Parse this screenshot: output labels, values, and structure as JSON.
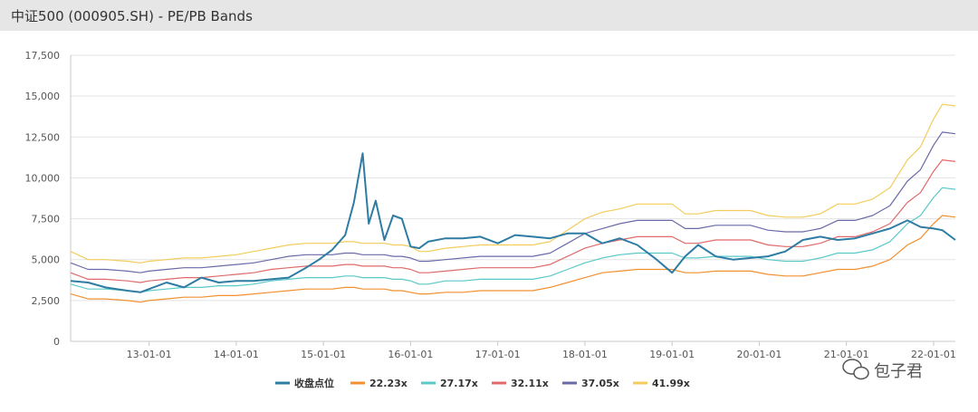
{
  "window": {
    "title": "中证500 (000905.SH) - PE/PB Bands"
  },
  "watermark": {
    "text": "包子君"
  },
  "chart_data": {
    "type": "line",
    "title": "中证500 (000905.SH) - PE/PB Bands",
    "xlabel": "",
    "ylabel": "",
    "ylim": [
      0,
      17500
    ],
    "grid": "horizontal",
    "legend_position": "bottom",
    "x_tick_labels": [
      "13-01-01",
      "14-01-01",
      "15-01-01",
      "16-01-01",
      "17-01-01",
      "18-01-01",
      "19-01-01",
      "20-01-01",
      "21-01-01",
      "22-01-01"
    ],
    "x_tick_positions": [
      2013.0,
      2014.0,
      2015.0,
      2016.0,
      2017.0,
      2018.0,
      2019.0,
      2020.0,
      2021.0,
      2022.0
    ],
    "y_ticks": [
      0,
      2500,
      5000,
      7500,
      10000,
      12500,
      15000,
      17500
    ],
    "y_tick_labels": [
      "0",
      "2,500",
      "5,000",
      "7,500",
      "10,000",
      "12,500",
      "15,000",
      "17,500"
    ],
    "x_range": [
      2012.1,
      2022.25
    ],
    "x": [
      2012.1,
      2012.3,
      2012.5,
      2012.75,
      2012.9,
      2013.0,
      2013.2,
      2013.4,
      2013.6,
      2013.8,
      2014.0,
      2014.2,
      2014.4,
      2014.6,
      2014.8,
      2014.95,
      2015.1,
      2015.25,
      2015.35,
      2015.45,
      2015.52,
      2015.6,
      2015.7,
      2015.8,
      2015.9,
      2016.0,
      2016.1,
      2016.2,
      2016.4,
      2016.6,
      2016.8,
      2017.0,
      2017.2,
      2017.4,
      2017.6,
      2017.8,
      2018.0,
      2018.2,
      2018.4,
      2018.6,
      2018.8,
      2019.0,
      2019.15,
      2019.3,
      2019.5,
      2019.7,
      2019.9,
      2020.1,
      2020.3,
      2020.5,
      2020.7,
      2020.9,
      2021.1,
      2021.3,
      2021.5,
      2021.7,
      2021.85,
      2022.0,
      2022.1,
      2022.25
    ],
    "series": [
      {
        "name": "收盘点位",
        "color": "#2e7ca3",
        "values": [
          3700,
          3600,
          3300,
          3100,
          3000,
          3200,
          3600,
          3300,
          3900,
          3600,
          3700,
          3700,
          3800,
          3900,
          4500,
          5000,
          5600,
          6500,
          8500,
          11500,
          7200,
          8600,
          6200,
          7700,
          7500,
          5800,
          5700,
          6100,
          6300,
          6300,
          6400,
          6000,
          6500,
          6400,
          6300,
          6600,
          6600,
          6000,
          6300,
          5900,
          5100,
          4200,
          5200,
          5900,
          5200,
          5000,
          5100,
          5200,
          5500,
          6200,
          6400,
          6200,
          6300,
          6600,
          6900,
          7400,
          7000,
          6900,
          6800,
          6200
        ]
      },
      {
        "name": "22.23x",
        "color": "#f29030",
        "values": [
          2900,
          2600,
          2600,
          2500,
          2400,
          2500,
          2600,
          2700,
          2700,
          2800,
          2800,
          2900,
          3000,
          3100,
          3200,
          3200,
          3200,
          3300,
          3300,
          3200,
          3200,
          3200,
          3200,
          3100,
          3100,
          3000,
          2900,
          2900,
          3000,
          3000,
          3100,
          3100,
          3100,
          3100,
          3300,
          3600,
          3900,
          4200,
          4300,
          4400,
          4400,
          4400,
          4200,
          4200,
          4300,
          4300,
          4300,
          4100,
          4000,
          4000,
          4200,
          4400,
          4400,
          4600,
          5000,
          5900,
          6300,
          7200,
          7700,
          7600
        ]
      },
      {
        "name": "27.17x",
        "color": "#5bc8c8",
        "values": [
          3500,
          3200,
          3200,
          3100,
          3000,
          3100,
          3200,
          3300,
          3300,
          3400,
          3400,
          3500,
          3700,
          3800,
          3900,
          3900,
          3900,
          4000,
          4000,
          3900,
          3900,
          3900,
          3900,
          3800,
          3800,
          3700,
          3500,
          3500,
          3700,
          3700,
          3800,
          3800,
          3800,
          3800,
          4000,
          4400,
          4800,
          5100,
          5300,
          5400,
          5400,
          5400,
          5100,
          5100,
          5200,
          5200,
          5200,
          5000,
          4900,
          4900,
          5100,
          5400,
          5400,
          5600,
          6100,
          7200,
          7700,
          8800,
          9400,
          9300
        ]
      },
      {
        "name": "32.11x",
        "color": "#e06a6a",
        "values": [
          4200,
          3800,
          3800,
          3700,
          3600,
          3700,
          3800,
          3900,
          3900,
          4000,
          4100,
          4200,
          4400,
          4500,
          4600,
          4600,
          4600,
          4700,
          4700,
          4600,
          4600,
          4600,
          4600,
          4500,
          4500,
          4400,
          4200,
          4200,
          4300,
          4400,
          4500,
          4500,
          4500,
          4500,
          4700,
          5200,
          5700,
          6000,
          6200,
          6400,
          6400,
          6400,
          6000,
          6000,
          6200,
          6200,
          6200,
          5900,
          5800,
          5800,
          6000,
          6400,
          6400,
          6700,
          7200,
          8500,
          9100,
          10400,
          11100,
          11000
        ]
      },
      {
        "name": "37.05x",
        "color": "#6a6aa8",
        "values": [
          4800,
          4400,
          4400,
          4300,
          4200,
          4300,
          4400,
          4500,
          4500,
          4600,
          4700,
          4800,
          5000,
          5200,
          5300,
          5300,
          5300,
          5400,
          5400,
          5300,
          5300,
          5300,
          5300,
          5200,
          5200,
          5100,
          4900,
          4900,
          5000,
          5100,
          5200,
          5200,
          5200,
          5200,
          5400,
          6000,
          6600,
          6900,
          7200,
          7400,
          7400,
          7400,
          6900,
          6900,
          7100,
          7100,
          7100,
          6800,
          6700,
          6700,
          6900,
          7400,
          7400,
          7700,
          8300,
          9800,
          10500,
          12000,
          12800,
          12700
        ]
      },
      {
        "name": "41.99x",
        "color": "#f2cd5c",
        "values": [
          5500,
          5000,
          5000,
          4900,
          4800,
          4900,
          5000,
          5100,
          5100,
          5200,
          5300,
          5500,
          5700,
          5900,
          6000,
          6000,
          6000,
          6100,
          6100,
          6000,
          6000,
          6000,
          6000,
          5900,
          5900,
          5800,
          5500,
          5500,
          5700,
          5800,
          5900,
          5900,
          5900,
          5900,
          6100,
          6800,
          7500,
          7900,
          8100,
          8400,
          8400,
          8400,
          7800,
          7800,
          8000,
          8000,
          8000,
          7700,
          7600,
          7600,
          7800,
          8400,
          8400,
          8700,
          9400,
          11100,
          11900,
          13600,
          14500,
          14400
        ]
      }
    ]
  }
}
